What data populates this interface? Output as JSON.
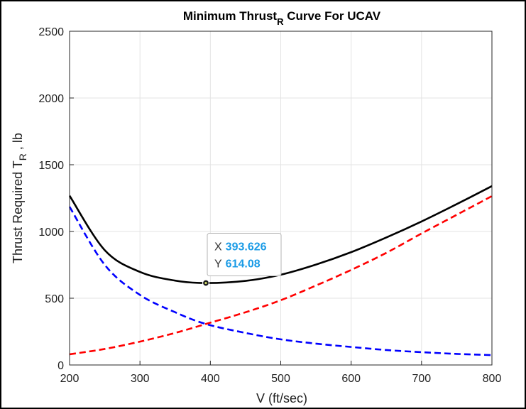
{
  "chart_data": {
    "type": "line",
    "title": "Minimum Thrust",
    "title_subscript": "R",
    "title_suffix": " Curve For UCAV",
    "xlabel": "V (ft/sec)",
    "ylabel": "Thrust Required T",
    "ylabel_subscript": "R",
    "ylabel_suffix": " , lb",
    "xlim": [
      200,
      800
    ],
    "ylim": [
      0,
      2500
    ],
    "xticks": [
      200,
      300,
      400,
      500,
      600,
      700,
      800
    ],
    "yticks": [
      0,
      500,
      1000,
      1500,
      2000,
      2500
    ],
    "grid": true,
    "series": [
      {
        "style": "solid",
        "color": "#000000",
        "x": [
          200,
          250,
          300,
          350,
          393.626,
          450,
          500,
          550,
          600,
          650,
          700,
          750,
          800
        ],
        "y": [
          1268,
          860,
          697,
          632,
          614,
          630,
          676,
          752,
          845,
          955,
          1075,
          1205,
          1340
        ]
      },
      {
        "style": "dashed",
        "color": "#0000ff",
        "x": [
          200,
          250,
          300,
          350,
          393.626,
          450,
          500,
          550,
          600,
          650,
          700,
          750,
          800
        ],
        "y": [
          1185,
          750,
          525,
          395,
          307,
          240,
          192,
          160,
          135,
          112,
          96,
          83,
          74
        ]
      },
      {
        "style": "dashed",
        "color": "#ff0000",
        "x": [
          200,
          250,
          300,
          350,
          393.626,
          450,
          500,
          550,
          600,
          650,
          700,
          750,
          800
        ],
        "y": [
          80,
          120,
          175,
          240,
          307,
          395,
          485,
          595,
          712,
          840,
          985,
          1125,
          1265
        ]
      }
    ],
    "datatip": {
      "x": 393.626,
      "y": 614.08,
      "x_label": "X",
      "y_label": "Y",
      "x_text": "393.626",
      "y_text": "614.08"
    }
  },
  "colors": {
    "grid": "#e3e3e3",
    "axis": "#262626",
    "datatip_value": "#1a9be6"
  }
}
